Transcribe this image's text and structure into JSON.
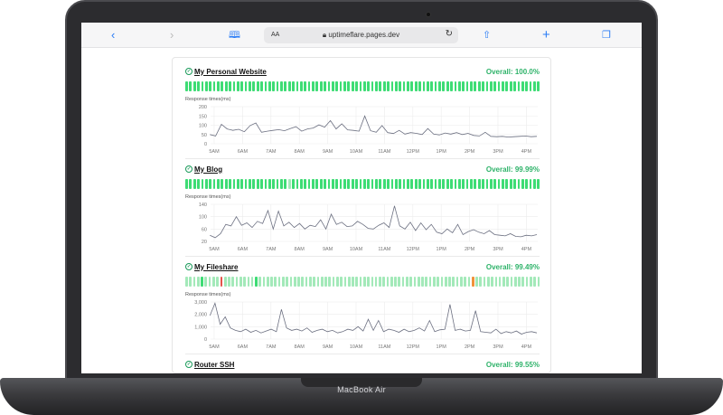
{
  "device": {
    "brand": "MacBook Air"
  },
  "browser": {
    "reader_label": "AA",
    "url": "uptimeflare.pages.dev",
    "icons": [
      "chevron-left-icon",
      "chevron-right-icon",
      "book-icon",
      "lock-icon",
      "reload-icon",
      "share-icon",
      "plus-icon",
      "tabs-icon"
    ]
  },
  "colors": {
    "up": "#3ddc74",
    "partial": "#a3e9b9",
    "down": "#e5534b",
    "degraded": "#f0913a",
    "line": "#6b6f80"
  },
  "monitors": [
    {
      "name": "My Personal Website",
      "overall": "Overall: 100.0%",
      "bars": "gggggggggggggggggggggggggggggggggggggggggggggggggggggggggggggggggggggggggggggggggggggggggg",
      "chart_label": "Response times(ms)",
      "yticks": [
        0,
        50,
        100,
        150,
        200
      ],
      "ymax": 200,
      "values": [
        50,
        42,
        105,
        80,
        72,
        78,
        65,
        98,
        112,
        62,
        68,
        72,
        76,
        70,
        82,
        92,
        68,
        80,
        85,
        102,
        90,
        125,
        80,
        108,
        75,
        72,
        68,
        150,
        70,
        62,
        98,
        60,
        55,
        72,
        52,
        60,
        56,
        50,
        82,
        52,
        48,
        58,
        52,
        60,
        50,
        56,
        45,
        42,
        62,
        40,
        38,
        40,
        36,
        38,
        40,
        42,
        38,
        40
      ]
    },
    {
      "name": "My Blog",
      "overall": "Overall: 99.99%",
      "bars": "gggggggggggggggggggggggggglggggggggggggggggggggggggggggggggggggggggggggggggggggggggggggggg",
      "chart_label": "Response times(ms)",
      "yticks": [
        20,
        60,
        100,
        140
      ],
      "ymax": 140,
      "ymin": 20,
      "values": [
        40,
        32,
        45,
        75,
        70,
        100,
        72,
        80,
        65,
        85,
        78,
        120,
        60,
        118,
        70,
        82,
        65,
        78,
        60,
        72,
        68,
        90,
        60,
        108,
        75,
        82,
        68,
        70,
        85,
        75,
        62,
        60,
        72,
        80,
        65,
        135,
        70,
        60,
        82,
        55,
        80,
        58,
        75,
        50,
        45,
        60,
        48,
        75,
        42,
        52,
        58,
        50,
        45,
        55,
        42,
        40,
        38,
        45,
        36,
        35,
        40,
        38,
        42
      ]
    },
    {
      "name": "My Fileshare",
      "overall": "Overall: 99.49%",
      "bars": "llllgllllrllllllllgllllllllllllllllllllllllllllllllllllllllllllllllllllllloLllllllllllllllll",
      "chart_label": "Response times(ms)",
      "yticks": [
        0,
        1000,
        2000,
        3000
      ],
      "ytick_labels": [
        "0",
        "1,000",
        "2,000",
        "3,000"
      ],
      "ymax": 3000,
      "values": [
        1900,
        2900,
        1200,
        1800,
        900,
        700,
        600,
        800,
        550,
        700,
        500,
        650,
        800,
        600,
        2400,
        900,
        700,
        800,
        650,
        900,
        550,
        700,
        800,
        600,
        700,
        500,
        600,
        800,
        700,
        1000,
        650,
        1600,
        700,
        1500,
        600,
        800,
        700,
        550,
        800,
        600,
        700,
        900,
        650,
        1500,
        600,
        750,
        800,
        2800,
        700,
        800,
        650,
        700,
        2300,
        600,
        550,
        500,
        800,
        450,
        600,
        500,
        650,
        400,
        550,
        600,
        500
      ]
    },
    {
      "name": "Router SSH",
      "overall": "Overall: 99.55%"
    }
  ],
  "x_ticks": [
    "5AM",
    "6AM",
    "7AM",
    "8AM",
    "9AM",
    "10AM",
    "11AM",
    "12PM",
    "1PM",
    "2PM",
    "3PM",
    "4PM"
  ]
}
